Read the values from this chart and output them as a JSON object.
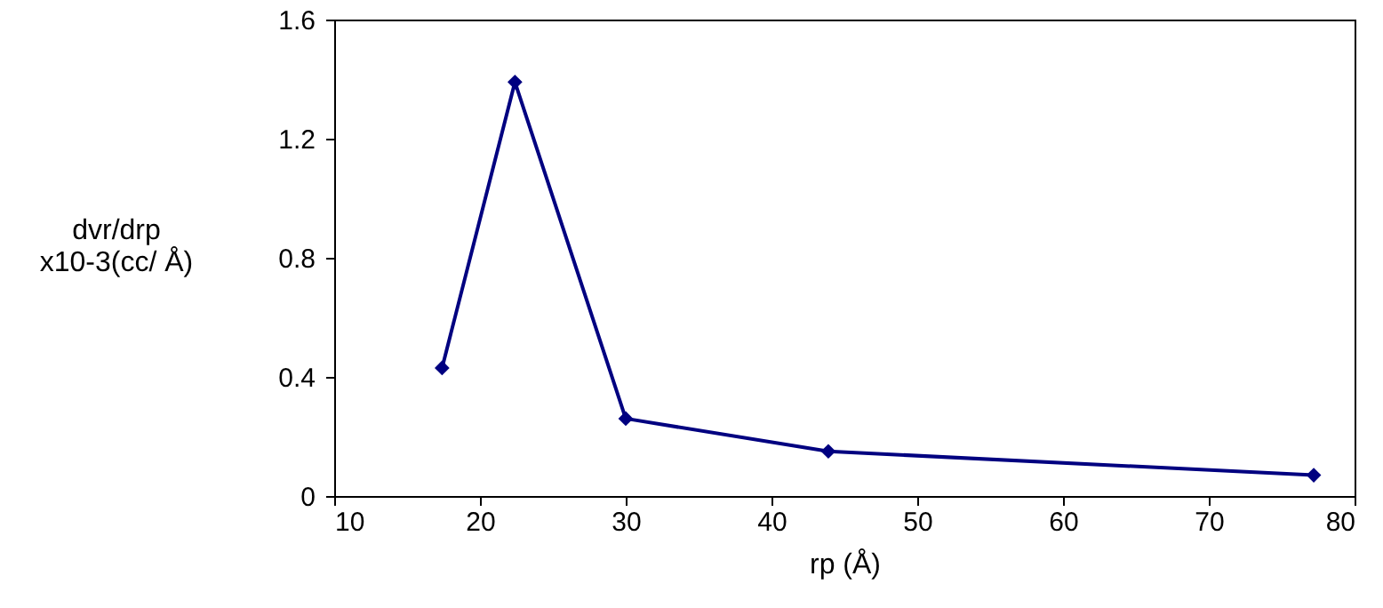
{
  "chart_data": {
    "type": "line",
    "xlabel": "rp  (Å)",
    "ylabel": "dvr/drp\nx10-3(cc/ Å)",
    "x": [
      17.4,
      22.4,
      30.0,
      43.9,
      77.2
    ],
    "series": [
      {
        "color": "#000080",
        "values": [
          0.43,
          1.39,
          0.26,
          0.15,
          0.07
        ]
      }
    ],
    "xlim": [
      10,
      80
    ],
    "xticks": [
      10,
      20,
      30,
      40,
      50,
      60,
      70,
      80
    ],
    "ylim": [
      0,
      1.6
    ],
    "yticks": [
      0,
      0.4,
      0.8,
      1.2,
      1.6
    ],
    "grid": false,
    "marker": "diamond",
    "line_style": "solid"
  }
}
